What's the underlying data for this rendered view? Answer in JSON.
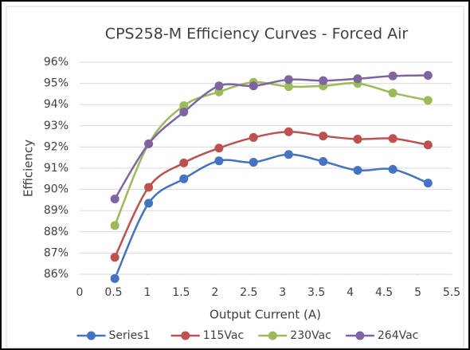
{
  "chart_data": {
    "type": "line",
    "title": "CPS258-M Efficiency Curves - Forced Air",
    "x_label": "Output Current (A)",
    "y_label": "Efficiency",
    "x": [
      0.52,
      1.02,
      1.54,
      2.06,
      2.57,
      3.09,
      3.6,
      4.11,
      4.63,
      5.15
    ],
    "series": [
      {
        "name": "Series1",
        "color": "#4472c4",
        "values": [
          85.8,
          89.35,
          90.5,
          91.35,
          91.28,
          91.65,
          91.32,
          90.9,
          90.95,
          90.3
        ]
      },
      {
        "name": "115Vac",
        "color": "#c0504d",
        "values": [
          86.8,
          90.1,
          91.25,
          91.95,
          92.45,
          92.72,
          92.52,
          92.37,
          92.4,
          92.1
        ]
      },
      {
        "name": "230Vac",
        "color": "#9bbb59",
        "values": [
          88.3,
          92.15,
          93.95,
          94.6,
          95.05,
          94.85,
          94.88,
          95.0,
          94.55,
          94.2
        ]
      },
      {
        "name": "264Vac",
        "color": "#8064a2",
        "values": [
          89.55,
          92.15,
          93.65,
          94.88,
          94.88,
          95.18,
          95.13,
          95.22,
          95.35,
          95.38
        ]
      }
    ],
    "xlim": [
      0,
      5.5
    ],
    "xticks": [
      0,
      0.5,
      1,
      1.5,
      2,
      2.5,
      3,
      3.5,
      4,
      4.5,
      5,
      5.5
    ],
    "ylim": [
      86,
      96
    ],
    "yticks": [
      {
        "value": 86,
        "label": "86%"
      },
      {
        "value": 87,
        "label": "87%"
      },
      {
        "value": 88,
        "label": "88%"
      },
      {
        "value": 89,
        "label": "89%"
      },
      {
        "value": 90,
        "label": "90%"
      },
      {
        "value": 91,
        "label": "91%"
      },
      {
        "value": 92,
        "label": "92%"
      },
      {
        "value": 93,
        "label": "93%"
      },
      {
        "value": 94,
        "label": "94%"
      },
      {
        "value": 95,
        "label": "95%"
      },
      {
        "value": 96,
        "label": "96%"
      }
    ],
    "grid": true,
    "smooth": true,
    "legend": "bottom"
  }
}
